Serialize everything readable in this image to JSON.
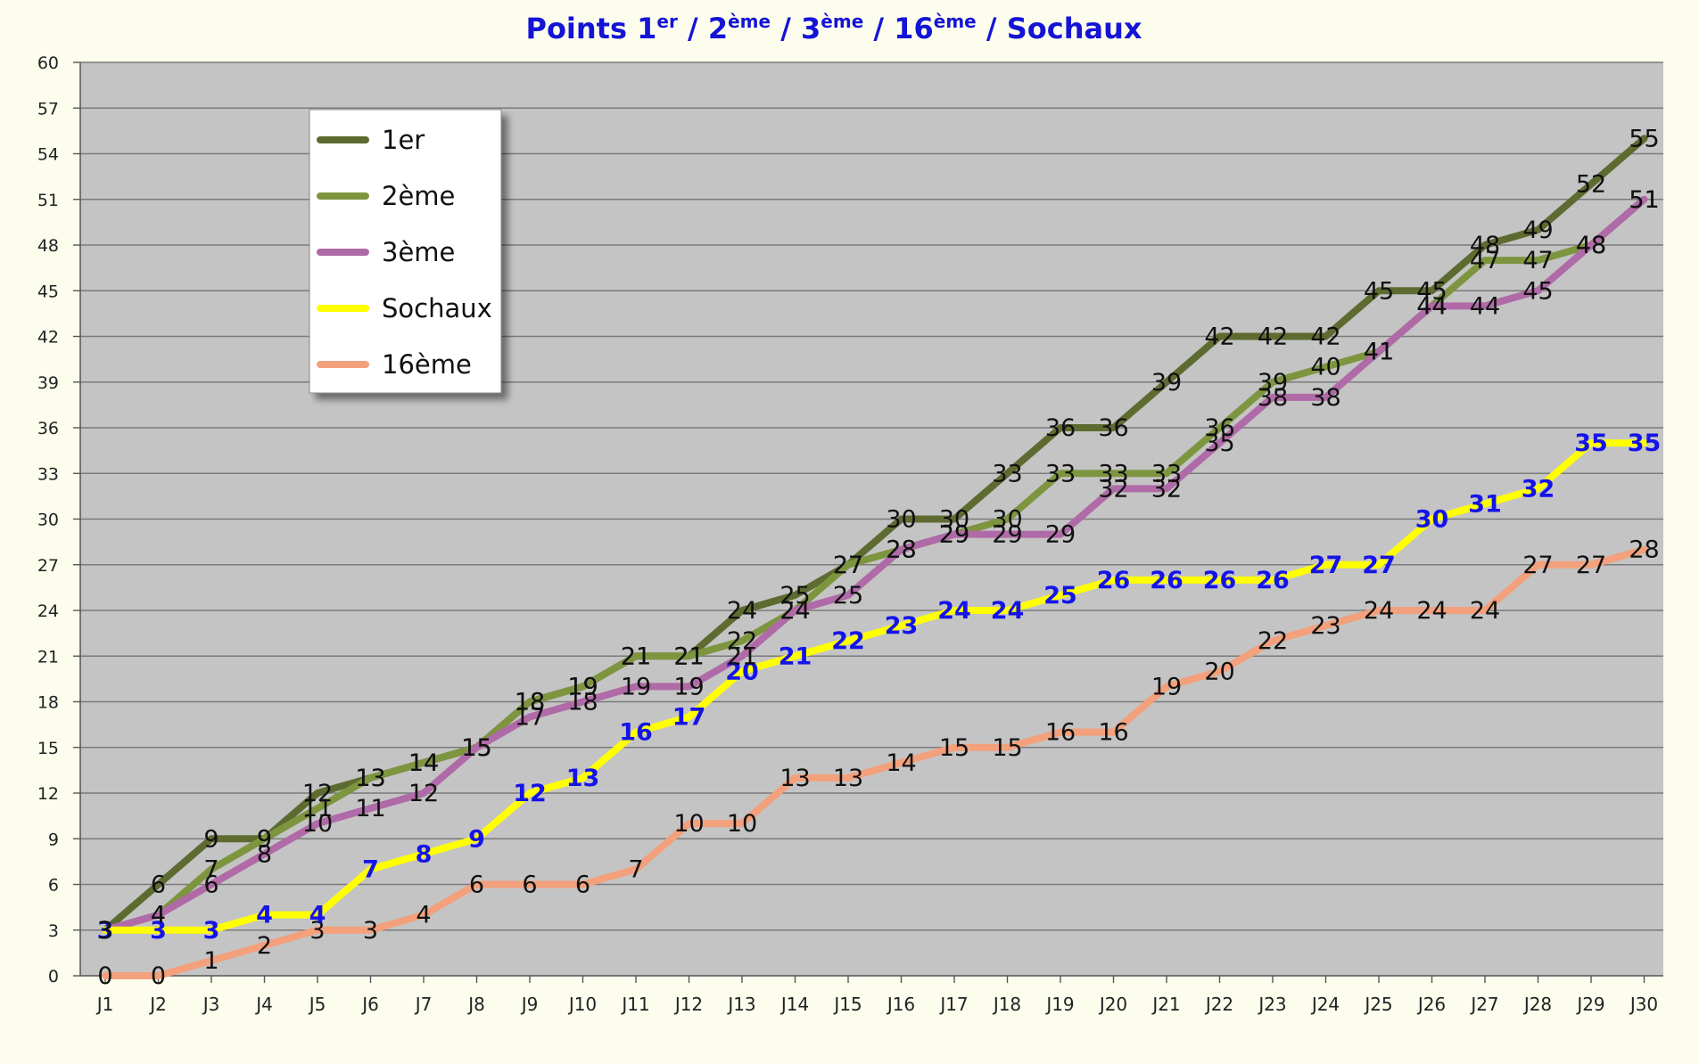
{
  "chart_data": {
    "type": "line",
    "title": {
      "parts": [
        {
          "text": "Points 1",
          "sup": false
        },
        {
          "text": "er",
          "sup": true
        },
        {
          "text": " / 2",
          "sup": false
        },
        {
          "text": "ème",
          "sup": true
        },
        {
          "text": " / 3",
          "sup": false
        },
        {
          "text": "ème",
          "sup": true
        },
        {
          "text": " / 16",
          "sup": false
        },
        {
          "text": "ème",
          "sup": true
        },
        {
          "text": " / Sochaux",
          "sup": false
        }
      ]
    },
    "xlabel": "",
    "ylabel": "",
    "ylim": [
      0,
      60
    ],
    "y_ticks": [
      0,
      3,
      6,
      9,
      12,
      15,
      18,
      21,
      24,
      27,
      30,
      33,
      36,
      39,
      42,
      45,
      48,
      51,
      54,
      57,
      60
    ],
    "grid": true,
    "legend_position": "top-left",
    "categories": [
      "J1",
      "J2",
      "J3",
      "J4",
      "J5",
      "J6",
      "J7",
      "J8",
      "J9",
      "J10",
      "J11",
      "J12",
      "J13",
      "J14",
      "J15",
      "J16",
      "J17",
      "J18",
      "J19",
      "J20",
      "J21",
      "J22",
      "J23",
      "J24",
      "J25",
      "J26",
      "J27",
      "J28",
      "J29",
      "J30"
    ],
    "series": [
      {
        "name": "1er",
        "color": "#5e6b30",
        "label_color": "#111111",
        "values": [
          3,
          6,
          9,
          9,
          12,
          13,
          14,
          15,
          18,
          19,
          21,
          21,
          24,
          25,
          27,
          30,
          30,
          33,
          36,
          36,
          39,
          42,
          42,
          42,
          45,
          45,
          48,
          49,
          52,
          55
        ]
      },
      {
        "name": "2ème",
        "color": "#7e9540",
        "label_color": "#111111",
        "values": [
          3,
          4,
          7,
          9,
          11,
          13,
          14,
          15,
          18,
          19,
          21,
          21,
          22,
          24,
          27,
          28,
          29,
          30,
          33,
          33,
          33,
          36,
          39,
          40,
          41,
          44,
          47,
          47,
          48,
          51
        ]
      },
      {
        "name": "3ème",
        "color": "#b06aa8",
        "label_color": "#111111",
        "values": [
          3,
          4,
          6,
          8,
          10,
          11,
          12,
          15,
          17,
          18,
          19,
          19,
          21,
          24,
          25,
          28,
          29,
          29,
          29,
          32,
          32,
          35,
          38,
          38,
          41,
          44,
          44,
          45,
          48,
          51
        ]
      },
      {
        "name": "Sochaux",
        "color": "#ffff00",
        "label_color": "#1414e8",
        "values": [
          3,
          3,
          3,
          4,
          4,
          7,
          8,
          9,
          12,
          13,
          16,
          17,
          20,
          21,
          22,
          23,
          24,
          24,
          25,
          26,
          26,
          26,
          26,
          27,
          27,
          30,
          31,
          32,
          35,
          35
        ]
      },
      {
        "name": "16ème",
        "color": "#f3a07c",
        "label_color": "#111111",
        "values": [
          0,
          0,
          1,
          2,
          3,
          3,
          4,
          6,
          6,
          6,
          7,
          10,
          10,
          13,
          13,
          14,
          15,
          15,
          16,
          16,
          19,
          20,
          22,
          23,
          24,
          24,
          24,
          27,
          27,
          28
        ]
      }
    ]
  }
}
